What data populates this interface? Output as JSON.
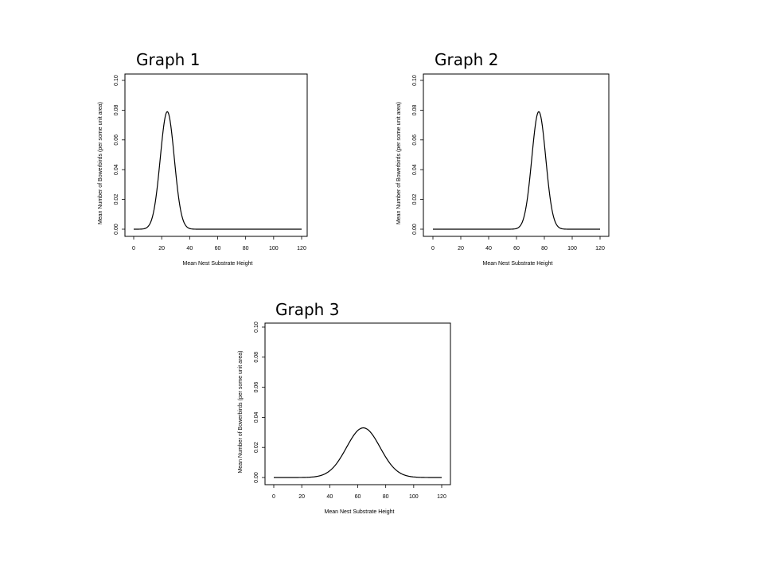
{
  "chart_data": [
    {
      "type": "line",
      "title": "Graph 1",
      "xlabel": "Mean Nest Substrate Height",
      "ylabel": "Mean Number of Bowerbirds (per some unit area)",
      "xlim": [
        0,
        120
      ],
      "ylim": [
        0,
        0.1
      ],
      "x_ticks": [
        "0",
        "20",
        "40",
        "60",
        "80",
        "100",
        "120"
      ],
      "y_ticks": [
        "0.00",
        "0.02",
        "0.04",
        "0.06",
        "0.08",
        "0.10"
      ],
      "grid": false,
      "series": [
        {
          "curve": "normal",
          "mean": 24,
          "sd": 5,
          "peak": 0.079,
          "x_range": [
            0,
            120
          ]
        }
      ]
    },
    {
      "type": "line",
      "title": "Graph 2",
      "xlabel": "Mean Nest Substrate Height",
      "ylabel": "Mean Number of Bowerbirds (per some unit area)",
      "xlim": [
        0,
        120
      ],
      "ylim": [
        0,
        0.1
      ],
      "x_ticks": [
        "0",
        "20",
        "40",
        "60",
        "80",
        "100",
        "120"
      ],
      "y_ticks": [
        "0.00",
        "0.02",
        "0.04",
        "0.06",
        "0.08",
        "0.10"
      ],
      "grid": false,
      "series": [
        {
          "curve": "normal",
          "mean": 76,
          "sd": 5,
          "peak": 0.079,
          "x_range": [
            0,
            120
          ]
        }
      ]
    },
    {
      "type": "line",
      "title": "Graph 3",
      "xlabel": "Mean Nest Substrate Height",
      "ylabel": "Mean Number of Bowerbirds (per some unit area)",
      "xlim": [
        0,
        120
      ],
      "ylim": [
        0,
        0.1
      ],
      "x_ticks": [
        "0",
        "20",
        "40",
        "60",
        "80",
        "100",
        "120"
      ],
      "y_ticks": [
        "0.00",
        "0.02",
        "0.04",
        "0.06",
        "0.08",
        "0.10"
      ],
      "grid": false,
      "series": [
        {
          "curve": "normal",
          "mean": 64,
          "sd": 12,
          "peak": 0.033,
          "x_range": [
            0,
            120
          ]
        }
      ]
    }
  ]
}
